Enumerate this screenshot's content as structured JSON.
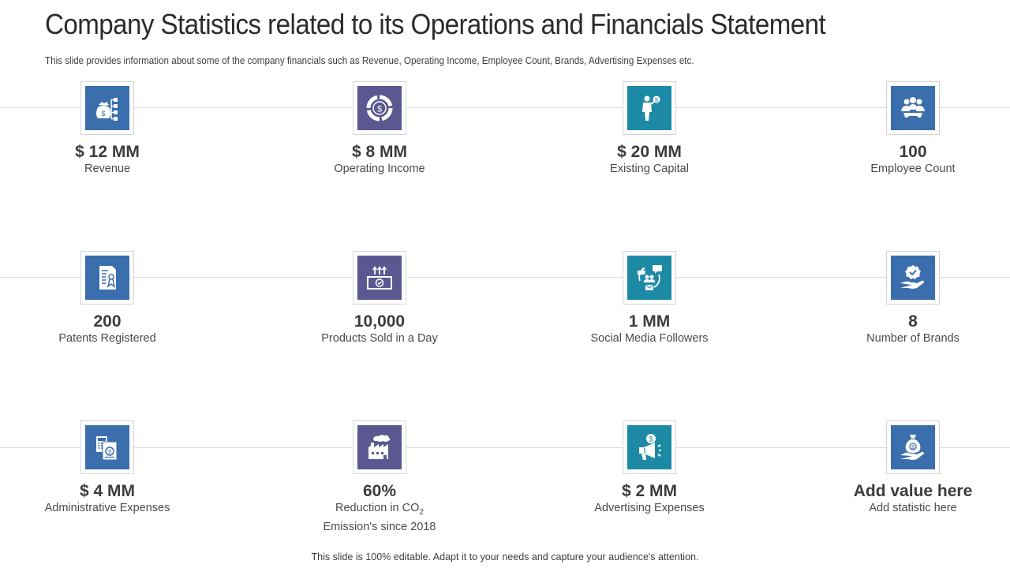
{
  "slide": {
    "title": "Company Statistics related to its Operations and Financials Statement",
    "subtitle": "This slide provides information about some of the company financials such as Revenue, Operating Income, Employee Count, Brands, Advertising Expenses etc.",
    "footer": "This slide is 100% editable. Adapt it to your needs and capture your audience's attention."
  },
  "colors": {
    "blue": "#3a6eac",
    "purple": "#5b5891",
    "teal": "#1d8aa5"
  },
  "stats": [
    {
      "value": "$ 12 MM",
      "label": "Revenue",
      "icon": "money-bag-flowchart-icon",
      "color": "blue"
    },
    {
      "value": "$ 8 MM",
      "label": "Operating Income",
      "icon": "dollar-cycle-icon",
      "color": "purple"
    },
    {
      "value": "$ 20 MM",
      "label": "Existing Capital",
      "icon": "businessman-dollar-icon",
      "color": "teal"
    },
    {
      "value": "100",
      "label": "Employee Count",
      "icon": "team-gear-icon",
      "color": "blue"
    },
    {
      "value": "200",
      "label": "Patents Registered",
      "icon": "patent-document-icon",
      "color": "blue"
    },
    {
      "value": "10,000",
      "label": "Products Sold in a Day",
      "icon": "product-box-icon",
      "color": "purple"
    },
    {
      "value": "1 MM",
      "label": "Social Media Followers",
      "icon": "social-network-icon",
      "color": "teal"
    },
    {
      "value": "8",
      "label": "Number of Brands",
      "icon": "hand-badge-icon",
      "color": "blue"
    },
    {
      "value": "$ 4 MM",
      "label": "Administrative Expenses",
      "icon": "calculator-bill-icon",
      "color": "blue"
    },
    {
      "value": "60%",
      "label_line1": "Reduction in CO",
      "label_sub": "2",
      "label_line2": "Emission's since 2018",
      "icon": "factory-emission-icon",
      "color": "purple"
    },
    {
      "value": "$ 2 MM",
      "label": "Advertising Expenses",
      "icon": "megaphone-dollar-icon",
      "color": "teal"
    },
    {
      "value": "Add value here",
      "label": "Add statistic  here",
      "icon": "hand-money-bag-icon",
      "color": "blue"
    }
  ]
}
